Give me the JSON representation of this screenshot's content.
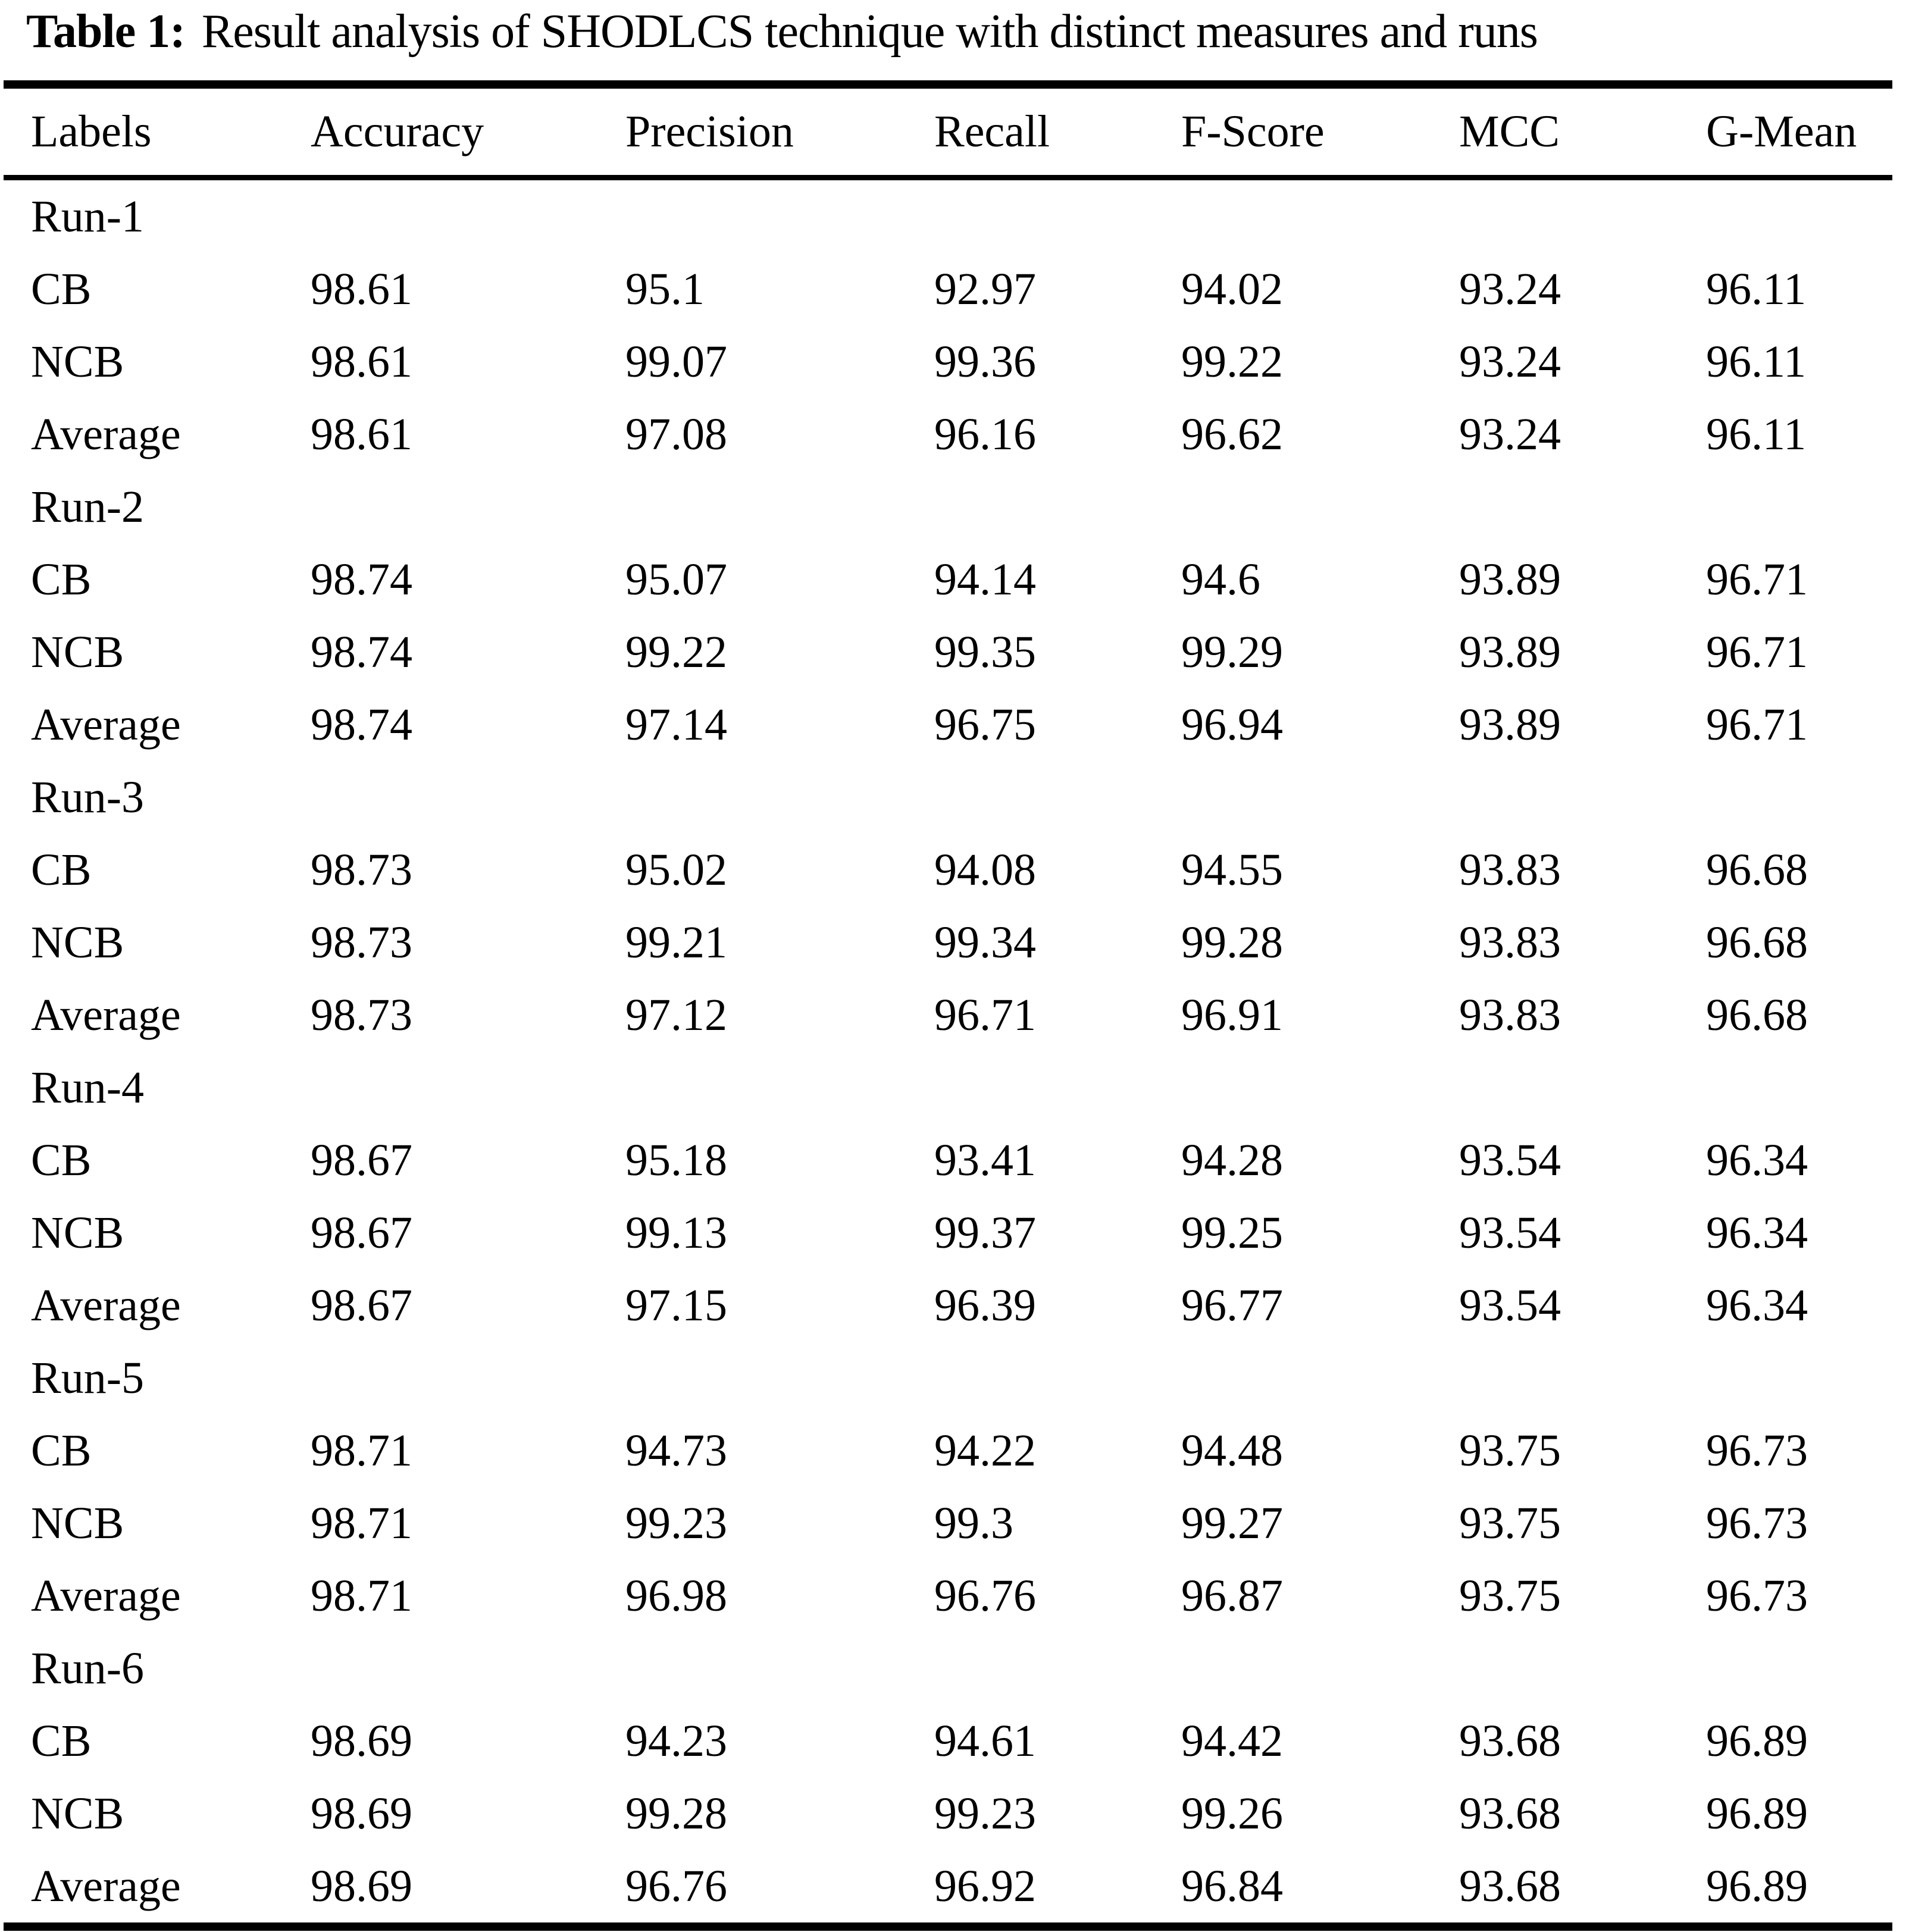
{
  "title": {
    "label": "Table 1:",
    "text": "Result analysis of SHODLCS technique with distinct measures and runs"
  },
  "table": {
    "columns": [
      "Labels",
      "Accuracy",
      "Precision",
      "Recall",
      "F-Score",
      "MCC",
      "G-Mean"
    ],
    "groups": [
      {
        "run": "Run-1",
        "rows": [
          {
            "label": "CB",
            "values": [
              "98.61",
              "95.1",
              "92.97",
              "94.02",
              "93.24",
              "96.11"
            ]
          },
          {
            "label": "NCB",
            "values": [
              "98.61",
              "99.07",
              "99.36",
              "99.22",
              "93.24",
              "96.11"
            ]
          },
          {
            "label": "Average",
            "values": [
              "98.61",
              "97.08",
              "96.16",
              "96.62",
              "93.24",
              "96.11"
            ]
          }
        ]
      },
      {
        "run": "Run-2",
        "rows": [
          {
            "label": "CB",
            "values": [
              "98.74",
              "95.07",
              "94.14",
              "94.6",
              "93.89",
              "96.71"
            ]
          },
          {
            "label": "NCB",
            "values": [
              "98.74",
              "99.22",
              "99.35",
              "99.29",
              "93.89",
              "96.71"
            ]
          },
          {
            "label": "Average",
            "values": [
              "98.74",
              "97.14",
              "96.75",
              "96.94",
              "93.89",
              "96.71"
            ]
          }
        ]
      },
      {
        "run": "Run-3",
        "rows": [
          {
            "label": "CB",
            "values": [
              "98.73",
              "95.02",
              "94.08",
              "94.55",
              "93.83",
              "96.68"
            ]
          },
          {
            "label": "NCB",
            "values": [
              "98.73",
              "99.21",
              "99.34",
              "99.28",
              "93.83",
              "96.68"
            ]
          },
          {
            "label": "Average",
            "values": [
              "98.73",
              "97.12",
              "96.71",
              "96.91",
              "93.83",
              "96.68"
            ]
          }
        ]
      },
      {
        "run": "Run-4",
        "rows": [
          {
            "label": "CB",
            "values": [
              "98.67",
              "95.18",
              "93.41",
              "94.28",
              "93.54",
              "96.34"
            ]
          },
          {
            "label": "NCB",
            "values": [
              "98.67",
              "99.13",
              "99.37",
              "99.25",
              "93.54",
              "96.34"
            ]
          },
          {
            "label": "Average",
            "values": [
              "98.67",
              "97.15",
              "96.39",
              "96.77",
              "93.54",
              "96.34"
            ]
          }
        ]
      },
      {
        "run": "Run-5",
        "rows": [
          {
            "label": "CB",
            "values": [
              "98.71",
              "94.73",
              "94.22",
              "94.48",
              "93.75",
              "96.73"
            ]
          },
          {
            "label": "NCB",
            "values": [
              "98.71",
              "99.23",
              "99.3",
              "99.27",
              "93.75",
              "96.73"
            ]
          },
          {
            "label": "Average",
            "values": [
              "98.71",
              "96.98",
              "96.76",
              "96.87",
              "93.75",
              "96.73"
            ]
          }
        ]
      },
      {
        "run": "Run-6",
        "rows": [
          {
            "label": "CB",
            "values": [
              "98.69",
              "94.23",
              "94.61",
              "94.42",
              "93.68",
              "96.89"
            ]
          },
          {
            "label": "NCB",
            "values": [
              "98.69",
              "99.28",
              "99.23",
              "99.26",
              "93.68",
              "96.89"
            ]
          },
          {
            "label": "Average",
            "values": [
              "98.69",
              "96.76",
              "96.92",
              "96.84",
              "93.68",
              "96.89"
            ]
          }
        ]
      }
    ]
  }
}
